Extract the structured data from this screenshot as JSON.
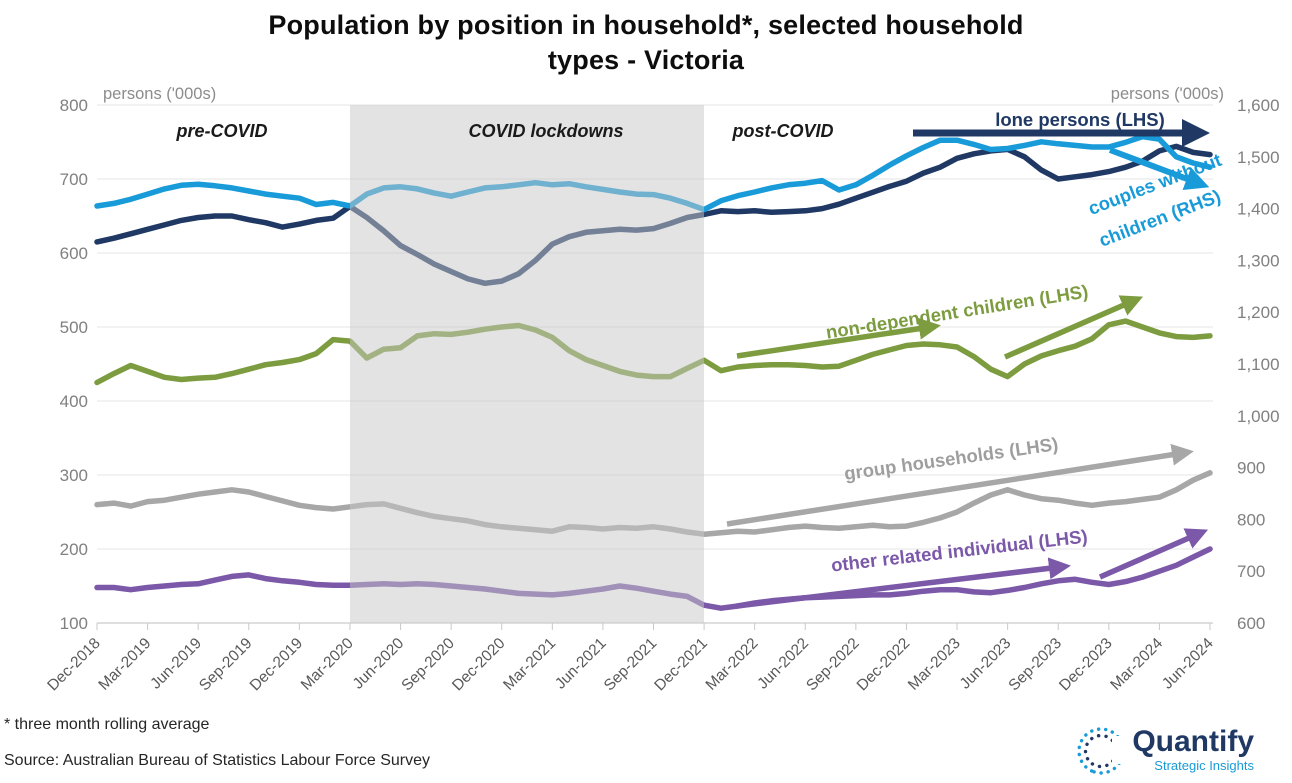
{
  "title": {
    "line1": "Population by position in household*, selected household",
    "line2": "types - Victoria"
  },
  "axes": {
    "left_title": "persons ('000s)",
    "right_title": "persons ('000s)",
    "left_ticks": [
      "800",
      "700",
      "600",
      "500",
      "400",
      "300",
      "200",
      "100"
    ],
    "right_ticks": [
      "1,600",
      "1,500",
      "1,400",
      "1,300",
      "1,200",
      "1,100",
      "1,000",
      "900",
      "800",
      "700",
      "600"
    ],
    "x_ticks": [
      "Dec-2018",
      "Mar-2019",
      "Jun-2019",
      "Sep-2019",
      "Dec-2019",
      "Mar-2020",
      "Jun-2020",
      "Sep-2020",
      "Dec-2020",
      "Mar-2021",
      "Jun-2021",
      "Sep-2021",
      "Dec-2021",
      "Mar-2022",
      "Jun-2022",
      "Sep-2022",
      "Dec-2022",
      "Mar-2023",
      "Jun-2023",
      "Sep-2023",
      "Dec-2023",
      "Mar-2024",
      "Jun-2024"
    ]
  },
  "zones": {
    "pre": "pre-COVID",
    "lockdown": "COVID lockdowns",
    "post": "post-COVID",
    "lockdown_span": [
      "Mar-2020",
      "Dec-2021"
    ]
  },
  "annotations": {
    "lone": "lone persons (LHS)",
    "couples_line1": "couples without",
    "couples_line2": "children (RHS)",
    "nondep": "non-dependent children (LHS)",
    "group": "group households (LHS)",
    "other": "other related individual (LHS)"
  },
  "footnotes": {
    "asterisk": "* three month rolling average",
    "source": "Source: Australian Bureau of Statistics Labour Force Survey"
  },
  "logo": {
    "name": "Quantify",
    "tagline": "Strategic Insights"
  },
  "colors": {
    "lone": "#1F3864",
    "couples": "#189BD8",
    "nondep": "#7C9C3F",
    "group": "#A7A7A7",
    "other": "#7B58A8",
    "band": "#c8c8c8"
  },
  "chart_data": {
    "type": "line",
    "title": "Population by position in household, selected household types - Victoria",
    "ylabel_left": "persons ('000s)",
    "ylabel_right": "persons ('000s)",
    "ylim_left": [
      100,
      800
    ],
    "ylim_right": [
      600,
      1600
    ],
    "grid": true,
    "x_monthly": [
      "Dec-2018",
      "Jan-2019",
      "Feb-2019",
      "Mar-2019",
      "Apr-2019",
      "May-2019",
      "Jun-2019",
      "Jul-2019",
      "Aug-2019",
      "Sep-2019",
      "Oct-2019",
      "Nov-2019",
      "Dec-2019",
      "Jan-2020",
      "Feb-2020",
      "Mar-2020",
      "Apr-2020",
      "May-2020",
      "Jun-2020",
      "Jul-2020",
      "Aug-2020",
      "Sep-2020",
      "Oct-2020",
      "Nov-2020",
      "Dec-2020",
      "Jan-2021",
      "Feb-2021",
      "Mar-2021",
      "Apr-2021",
      "May-2021",
      "Jun-2021",
      "Jul-2021",
      "Aug-2021",
      "Sep-2021",
      "Oct-2021",
      "Nov-2021",
      "Dec-2021",
      "Jan-2022",
      "Feb-2022",
      "Mar-2022",
      "Apr-2022",
      "May-2022",
      "Jun-2022",
      "Jul-2022",
      "Aug-2022",
      "Sep-2022",
      "Oct-2022",
      "Nov-2022",
      "Dec-2022",
      "Jan-2023",
      "Feb-2023",
      "Mar-2023",
      "Apr-2023",
      "May-2023",
      "Jun-2023",
      "Jul-2023",
      "Aug-2023",
      "Sep-2023",
      "Oct-2023",
      "Nov-2023",
      "Dec-2023",
      "Jan-2024",
      "Feb-2024",
      "Mar-2024",
      "Apr-2024",
      "May-2024",
      "Jun-2024"
    ],
    "series": [
      {
        "name": "lone persons (LHS)",
        "axis": "LHS",
        "color": "#1F3864",
        "values": [
          615,
          620,
          626,
          632,
          638,
          644,
          648,
          650,
          650,
          645,
          641,
          635,
          639,
          644,
          647,
          663,
          648,
          630,
          610,
          598,
          585,
          575,
          565,
          559,
          562,
          572,
          590,
          612,
          622,
          628,
          630,
          632,
          631,
          633,
          640,
          648,
          652,
          657,
          656,
          657,
          655,
          656,
          657,
          660,
          666,
          674,
          682,
          690,
          697,
          708,
          716,
          728,
          734,
          738,
          740,
          730,
          712,
          700,
          703,
          706,
          710,
          716,
          724,
          738,
          744,
          736,
          733
        ]
      },
      {
        "name": "couples without children (RHS)",
        "axis": "RHS",
        "color": "#189BD8",
        "values": [
          1405,
          1410,
          1418,
          1428,
          1438,
          1445,
          1447,
          1444,
          1440,
          1434,
          1428,
          1424,
          1420,
          1408,
          1412,
          1405,
          1428,
          1440,
          1442,
          1438,
          1430,
          1424,
          1432,
          1440,
          1442,
          1446,
          1450,
          1446,
          1448,
          1442,
          1437,
          1432,
          1428,
          1427,
          1420,
          1410,
          1398,
          1415,
          1425,
          1432,
          1440,
          1446,
          1449,
          1454,
          1436,
          1446,
          1464,
          1484,
          1502,
          1518,
          1532,
          1532,
          1524,
          1514,
          1516,
          1522,
          1529,
          1525,
          1522,
          1519,
          1519,
          1528,
          1539,
          1534,
          1500,
          1488,
          1480
        ]
      },
      {
        "name": "non-dependent children (LHS)",
        "axis": "LHS",
        "color": "#7C9C3F",
        "values": [
          425,
          437,
          448,
          440,
          432,
          429,
          431,
          432,
          437,
          443,
          449,
          452,
          456,
          464,
          483,
          481,
          458,
          470,
          472,
          488,
          491,
          490,
          493,
          497,
          500,
          502,
          496,
          486,
          468,
          456,
          448,
          440,
          435,
          433,
          433,
          444,
          455,
          441,
          446,
          448,
          449,
          449,
          448,
          446,
          447,
          455,
          463,
          469,
          475,
          477,
          476,
          473,
          460,
          443,
          433,
          450,
          461,
          468,
          474,
          484,
          503,
          508,
          500,
          492,
          487,
          486,
          488
        ]
      },
      {
        "name": "group households (LHS)",
        "axis": "LHS",
        "color": "#A7A7A7",
        "values": [
          260,
          262,
          258,
          264,
          266,
          270,
          274,
          277,
          280,
          277,
          271,
          265,
          259,
          256,
          254,
          257,
          260,
          261,
          255,
          249,
          244,
          241,
          238,
          233,
          230,
          228,
          226,
          224,
          230,
          229,
          227,
          229,
          228,
          230,
          227,
          223,
          220,
          222,
          224,
          223,
          226,
          229,
          231,
          229,
          228,
          230,
          232,
          230,
          231,
          236,
          242,
          250,
          262,
          273,
          280,
          273,
          268,
          266,
          262,
          259,
          262,
          264,
          267,
          270,
          280,
          293,
          303
        ]
      },
      {
        "name": "other related individual (LHS)",
        "axis": "LHS",
        "color": "#7B58A8",
        "values": [
          148,
          148,
          145,
          148,
          150,
          152,
          153,
          158,
          163,
          165,
          160,
          157,
          155,
          152,
          151,
          151,
          152,
          153,
          152,
          153,
          152,
          150,
          148,
          146,
          143,
          140,
          139,
          138,
          140,
          143,
          146,
          150,
          147,
          143,
          139,
          136,
          124,
          120,
          123,
          127,
          130,
          132,
          134,
          135,
          136,
          137,
          138,
          138,
          140,
          143,
          145,
          145,
          142,
          141,
          144,
          148,
          153,
          157,
          159,
          155,
          152,
          156,
          162,
          170,
          178,
          189,
          200
        ]
      }
    ]
  }
}
